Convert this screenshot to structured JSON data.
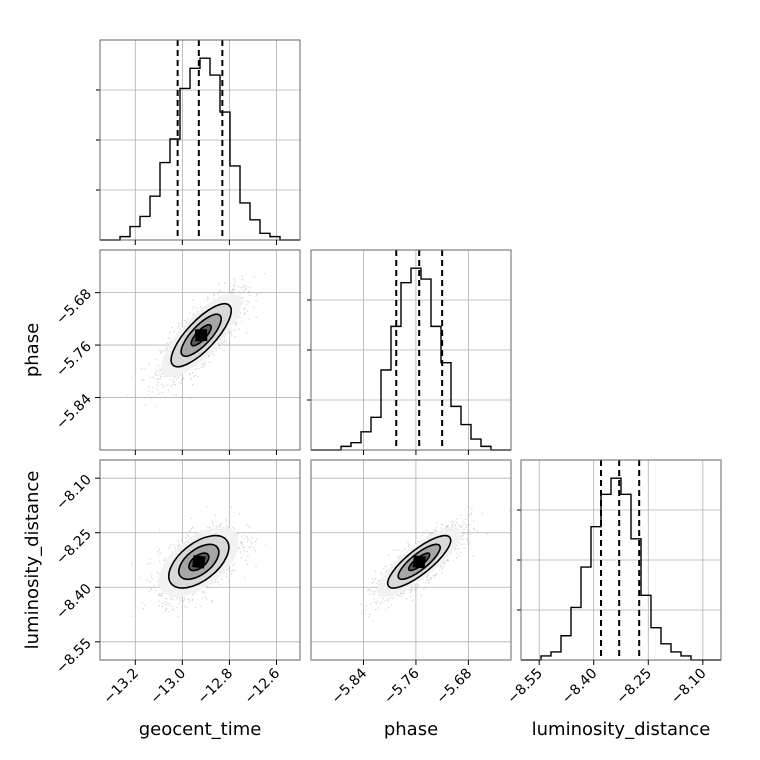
{
  "chart_data": {
    "type": "corner",
    "parameters": [
      "geocent_time",
      "phase",
      "luminosity_distance"
    ],
    "axes": {
      "geocent_time": {
        "range": [
          -13.35,
          -12.5
        ],
        "ticks": [
          -13.2,
          -13.0,
          -12.8,
          -12.6
        ],
        "tick_labels": [
          "−13.2",
          "−13.0",
          "−12.8",
          "−12.6"
        ]
      },
      "phase": {
        "range": [
          -5.92,
          -5.615
        ],
        "ticks": [
          -5.84,
          -5.76,
          -5.68
        ],
        "tick_labels": [
          "−5.84",
          "−5.76",
          "−5.68"
        ]
      },
      "luminosity_distance": {
        "range": [
          -8.6,
          -8.05
        ],
        "ticks": [
          -8.55,
          -8.4,
          -8.25,
          -8.1
        ],
        "tick_labels": [
          "−8.55",
          "−8.40",
          "−8.25",
          "−8.10"
        ]
      }
    },
    "marginals": {
      "geocent_time": {
        "quantiles": [
          -13.02,
          -12.93,
          -12.83
        ],
        "bin_edges": [
          -13.35,
          -13.3075,
          -13.265,
          -13.2225,
          -13.18,
          -13.1375,
          -13.095,
          -13.0525,
          -13.01,
          -12.9675,
          -12.925,
          -12.8825,
          -12.84,
          -12.7975,
          -12.755,
          -12.7125,
          -12.67,
          -12.6275,
          -12.585,
          -12.5425,
          -12.5
        ],
        "counts": [
          0,
          0,
          1,
          4,
          7,
          13,
          23,
          30,
          45,
          51,
          54,
          49,
          38,
          22,
          11,
          6,
          2,
          1,
          0,
          0
        ]
      },
      "phase": {
        "quantiles": [
          -5.79,
          -5.755,
          -5.72
        ],
        "bin_edges": [
          -5.92,
          -5.90475,
          -5.8895,
          -5.87425,
          -5.859,
          -5.84375,
          -5.8285,
          -5.81325,
          -5.798,
          -5.78275,
          -5.7675,
          -5.75225,
          -5.737,
          -5.72175,
          -5.7065,
          -5.69125,
          -5.676,
          -5.66075,
          -5.6455,
          -5.63025,
          -5.615
        ],
        "counts": [
          0,
          0,
          0,
          1,
          2,
          5,
          9,
          22,
          34,
          46,
          50,
          47,
          34,
          24,
          12,
          7,
          3,
          1,
          0,
          0
        ]
      },
      "luminosity_distance": {
        "quantiles": [
          -8.38,
          -8.33,
          -8.275
        ],
        "bin_edges": [
          -8.6,
          -8.5725,
          -8.545,
          -8.5175,
          -8.49,
          -8.4625,
          -8.435,
          -8.4075,
          -8.38,
          -8.3525,
          -8.325,
          -8.2975,
          -8.27,
          -8.2425,
          -8.215,
          -8.1875,
          -8.16,
          -8.1325,
          -8.105,
          -8.0775,
          -8.05
        ],
        "counts": [
          0,
          0,
          1,
          2,
          6,
          13,
          23,
          33,
          41,
          45,
          41,
          30,
          16,
          8,
          4,
          2,
          1,
          0,
          0,
          0
        ]
      }
    },
    "joint": [
      {
        "x": "geocent_time",
        "y": "phase",
        "mean": [
          -12.92,
          -5.745
        ],
        "sd": [
          0.085,
          0.032
        ],
        "corr": 0.78
      },
      {
        "x": "geocent_time",
        "y": "luminosity_distance",
        "mean": [
          -12.93,
          -8.33
        ],
        "sd": [
          0.085,
          0.048
        ],
        "corr": 0.55
      },
      {
        "x": "phase",
        "y": "luminosity_distance",
        "mean": [
          -5.755,
          -8.33
        ],
        "sd": [
          0.032,
          0.048
        ],
        "corr": 0.82
      }
    ],
    "contour_levels_sigma": [
      0.5,
      1.0,
      1.5,
      2.0
    ],
    "grid": true,
    "colors": {
      "line": "#000000",
      "points": "#9a9a9a",
      "grid": "#b0b0b0",
      "dashed_quantile": "#000000"
    }
  }
}
